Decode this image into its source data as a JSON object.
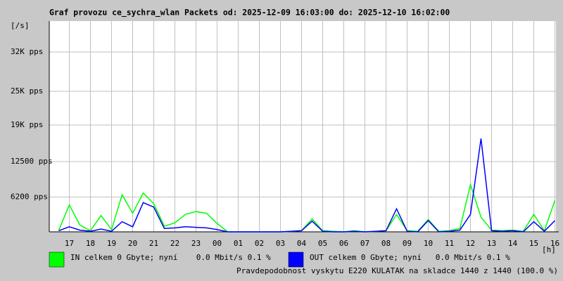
{
  "chart_data": {
    "type": "line",
    "title": "Graf provozu ce_sychra_wlan Packets od: 2025-12-09 16:03:00 do: 2025-12-10 16:02:00",
    "y_label": "[/s]",
    "x_label": "[h]",
    "annotation": "Pravdepodobnost vyskytu E220 KULATAK na skladce 1440 z 1440 (100.0 %)",
    "x": [
      0.5,
      1,
      1.5,
      2,
      2.5,
      3,
      3.5,
      4,
      4.5,
      5,
      5.5,
      6,
      6.5,
      7,
      7.5,
      8,
      8.5,
      9,
      9.5,
      10,
      10.5,
      11,
      11.5,
      12,
      12.5,
      13,
      13.5,
      14,
      14.5,
      15,
      15.5,
      16,
      16.5,
      17,
      17.5,
      18,
      18.5,
      19,
      19.5,
      20,
      20.5,
      21,
      21.5,
      22,
      22.5,
      23,
      23.5,
      24
    ],
    "series": [
      {
        "name": "IN celkem 0 Gbyte; nyní    0.0 Mbit/s 0.1 %",
        "color": "#00ff00",
        "values": [
          300,
          4800,
          1200,
          200,
          2900,
          400,
          6600,
          3300,
          6900,
          5000,
          1000,
          1600,
          3100,
          3600,
          3300,
          1500,
          0,
          0,
          0,
          0,
          0,
          0,
          100,
          200,
          2300,
          200,
          100,
          0,
          200,
          0,
          100,
          200,
          3100,
          200,
          100,
          2200,
          100,
          200,
          600,
          8400,
          2600,
          300,
          200,
          300,
          100,
          3100,
          200,
          5600
        ]
      },
      {
        "name": "OUT celkem 0 Gbyte; nyní   0.0 Mbit/s 0.1 %",
        "color": "#0000ff",
        "values": [
          200,
          900,
          300,
          100,
          500,
          100,
          1800,
          900,
          5200,
          4400,
          600,
          700,
          900,
          800,
          700,
          400,
          0,
          0,
          0,
          0,
          0,
          0,
          100,
          200,
          1900,
          100,
          0,
          0,
          100,
          0,
          100,
          200,
          4100,
          100,
          0,
          2000,
          0,
          100,
          300,
          3100,
          16600,
          200,
          100,
          200,
          0,
          1800,
          100,
          2000
        ]
      }
    ],
    "xlim": [
      0.05,
      24.05
    ],
    "xticks": [
      {
        "value": 1,
        "label": "17"
      },
      {
        "value": 2,
        "label": "18"
      },
      {
        "value": 3,
        "label": "19"
      },
      {
        "value": 4,
        "label": "20"
      },
      {
        "value": 5,
        "label": "21"
      },
      {
        "value": 6,
        "label": "22"
      },
      {
        "value": 7,
        "label": "23"
      },
      {
        "value": 8,
        "label": "00"
      },
      {
        "value": 9,
        "label": "01"
      },
      {
        "value": 10,
        "label": "02"
      },
      {
        "value": 11,
        "label": "03"
      },
      {
        "value": 12,
        "label": "04"
      },
      {
        "value": 13,
        "label": "05"
      },
      {
        "value": 14,
        "label": "06"
      },
      {
        "value": 15,
        "label": "07"
      },
      {
        "value": 16,
        "label": "08"
      },
      {
        "value": 17,
        "label": "09"
      },
      {
        "value": 18,
        "label": "10"
      },
      {
        "value": 19,
        "label": "11"
      },
      {
        "value": 20,
        "label": "12"
      },
      {
        "value": 21,
        "label": "13"
      },
      {
        "value": 22,
        "label": "14"
      },
      {
        "value": 23,
        "label": "15"
      },
      {
        "value": 24,
        "label": "16"
      }
    ],
    "ylim": [
      0,
      37500
    ],
    "yticks": [
      {
        "value": 6200,
        "label": "6200 pps"
      },
      {
        "value": 12500,
        "label": "12500 pps"
      },
      {
        "value": 19000,
        "label": "19K pps"
      },
      {
        "value": 25000,
        "label": "25K pps"
      },
      {
        "value": 32000,
        "label": "32K pps"
      }
    ],
    "grid": true,
    "annotation_color": "#ff0000"
  }
}
